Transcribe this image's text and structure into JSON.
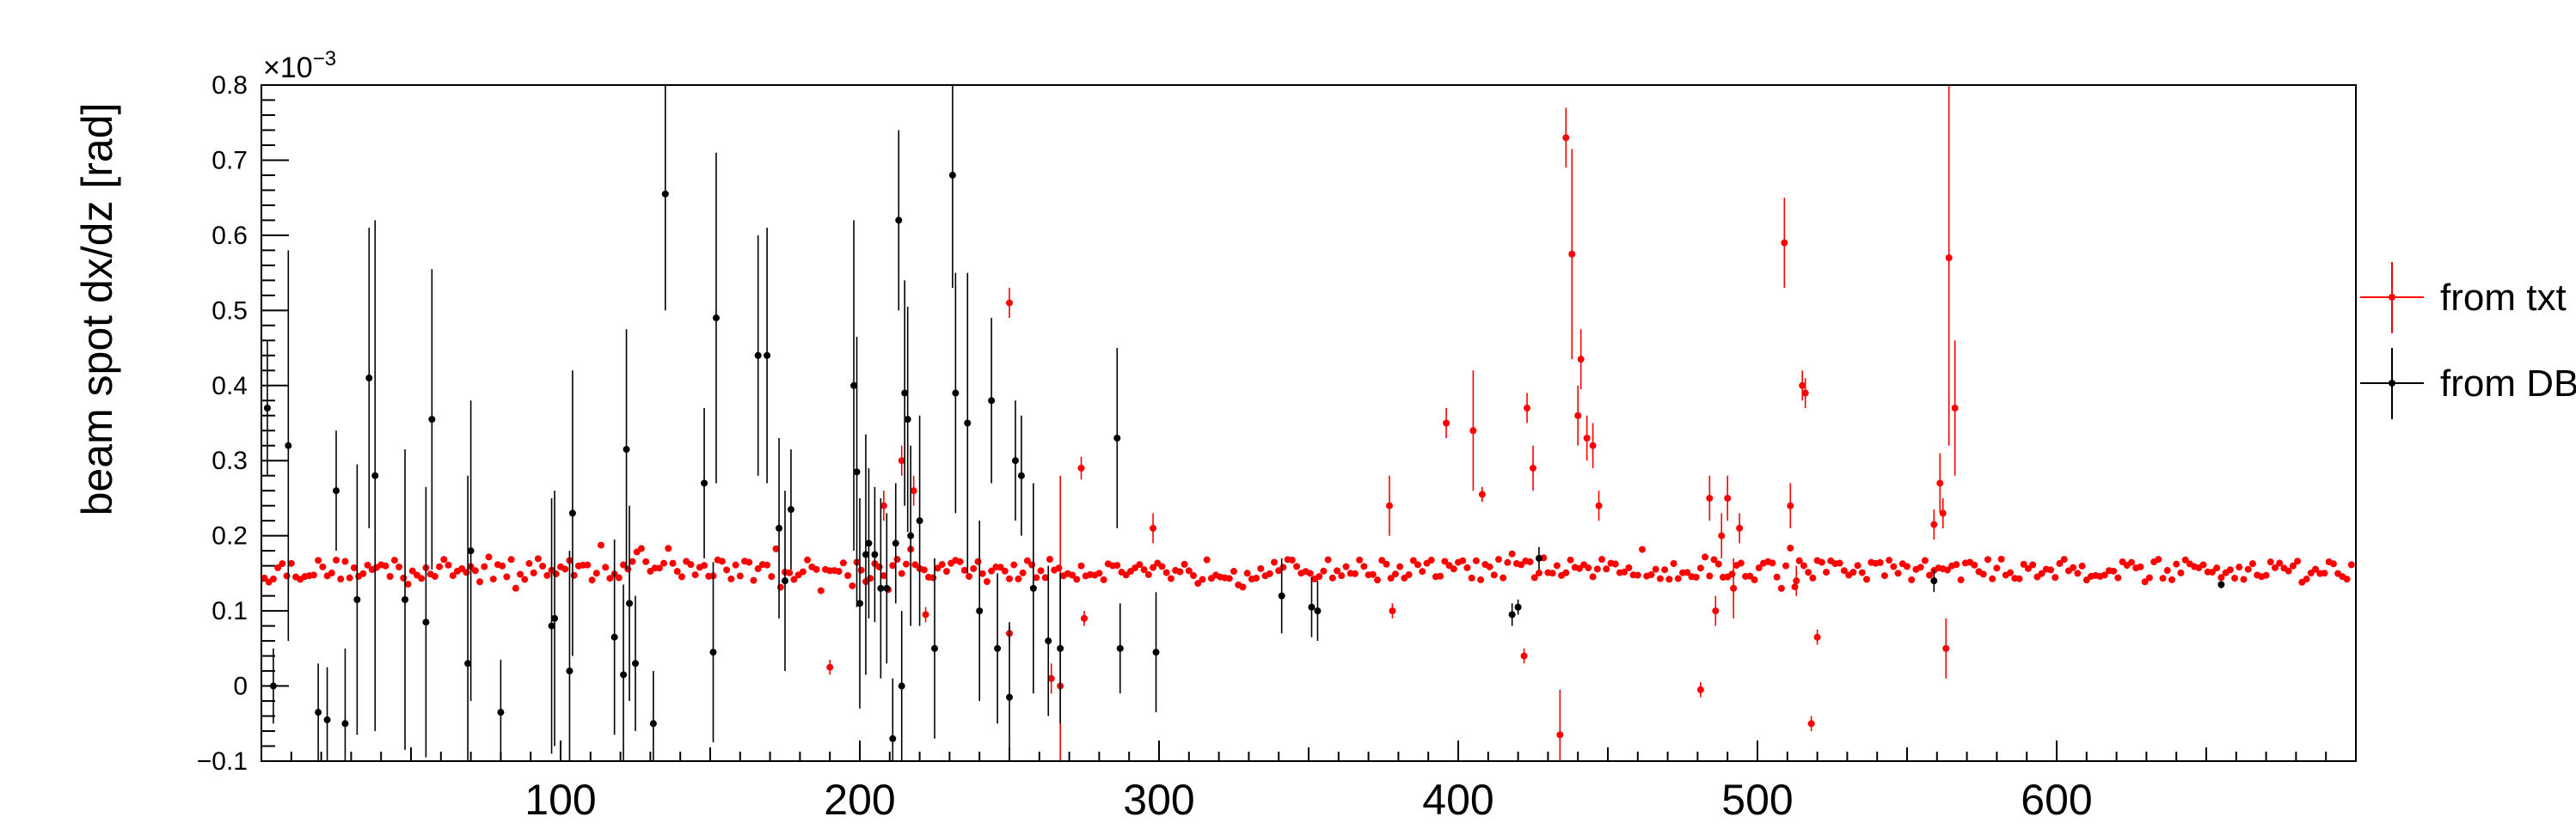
{
  "chart_data": {
    "type": "scatter",
    "ylabel": "beam spot dx/dz [rad]",
    "xlabel": "",
    "y_multiplier": "×10",
    "y_multiplier_exponent": "−3",
    "xlim": [
      0,
      700
    ],
    "ylim": [
      -0.1,
      0.8
    ],
    "x_ticks": [
      100,
      200,
      300,
      400,
      500,
      600
    ],
    "y_ticks": [
      -0.1,
      0,
      0.1,
      0.2,
      0.3,
      0.4,
      0.5,
      0.6,
      0.7,
      0.8
    ],
    "y_tick_labels": [
      "−0.1",
      "0",
      "0.1",
      "0.2",
      "0.3",
      "0.4",
      "0.5",
      "0.6",
      "0.7",
      "0.8"
    ],
    "legend_position": "right",
    "series": [
      {
        "name": "from txt",
        "color": "#ff0000",
        "baseline": 0.155,
        "x_range": [
          1,
          699
        ],
        "x_step": 1.5,
        "outliers": [
          {
            "x": 190,
            "y": 0.025,
            "err": 0.01
          },
          {
            "x": 208,
            "y": 0.24,
            "err": 0.02
          },
          {
            "x": 214,
            "y": 0.3,
            "err": 0.02
          },
          {
            "x": 218,
            "y": 0.26,
            "err": 0.02
          },
          {
            "x": 222,
            "y": 0.095,
            "err": 0.01
          },
          {
            "x": 250,
            "y": 0.51,
            "err": 0.02
          },
          {
            "x": 250,
            "y": 0.07,
            "err": 0.01
          },
          {
            "x": 264,
            "y": 0.01,
            "err": 0.02
          },
          {
            "x": 267,
            "y": 0.0,
            "err": 0.28
          },
          {
            "x": 274,
            "y": 0.29,
            "err": 0.015
          },
          {
            "x": 275,
            "y": 0.09,
            "err": 0.01
          },
          {
            "x": 298,
            "y": 0.21,
            "err": 0.02
          },
          {
            "x": 377,
            "y": 0.24,
            "err": 0.04
          },
          {
            "x": 378,
            "y": 0.1,
            "err": 0.01
          },
          {
            "x": 396,
            "y": 0.35,
            "err": 0.02
          },
          {
            "x": 405,
            "y": 0.34,
            "err": 0.08
          },
          {
            "x": 408,
            "y": 0.255,
            "err": 0.01
          },
          {
            "x": 422,
            "y": 0.04,
            "err": 0.01
          },
          {
            "x": 423,
            "y": 0.37,
            "err": 0.02
          },
          {
            "x": 425,
            "y": 0.29,
            "err": 0.03
          },
          {
            "x": 434,
            "y": -0.065,
            "err": 0.06
          },
          {
            "x": 436,
            "y": 0.73,
            "err": 0.04
          },
          {
            "x": 438,
            "y": 0.575,
            "err": 0.14
          },
          {
            "x": 440,
            "y": 0.36,
            "err": 0.04
          },
          {
            "x": 441,
            "y": 0.435,
            "err": 0.04
          },
          {
            "x": 443,
            "y": 0.33,
            "err": 0.03
          },
          {
            "x": 445,
            "y": 0.32,
            "err": 0.03
          },
          {
            "x": 447,
            "y": 0.24,
            "err": 0.02
          },
          {
            "x": 481,
            "y": -0.005,
            "err": 0.01
          },
          {
            "x": 484,
            "y": 0.25,
            "err": 0.03
          },
          {
            "x": 486,
            "y": 0.1,
            "err": 0.02
          },
          {
            "x": 488,
            "y": 0.2,
            "err": 0.03
          },
          {
            "x": 490,
            "y": 0.25,
            "err": 0.03
          },
          {
            "x": 492,
            "y": 0.13,
            "err": 0.04
          },
          {
            "x": 494,
            "y": 0.21,
            "err": 0.02
          },
          {
            "x": 509,
            "y": 0.59,
            "err": 0.06
          },
          {
            "x": 511,
            "y": 0.24,
            "err": 0.03
          },
          {
            "x": 513,
            "y": 0.14,
            "err": 0.02
          },
          {
            "x": 515,
            "y": 0.4,
            "err": 0.02
          },
          {
            "x": 516,
            "y": 0.39,
            "err": 0.02
          },
          {
            "x": 518,
            "y": -0.05,
            "err": 0.01
          },
          {
            "x": 520,
            "y": 0.065,
            "err": 0.01
          },
          {
            "x": 559,
            "y": 0.215,
            "err": 0.02
          },
          {
            "x": 561,
            "y": 0.27,
            "err": 0.04
          },
          {
            "x": 562,
            "y": 0.23,
            "err": 0.02
          },
          {
            "x": 563,
            "y": 0.05,
            "err": 0.04
          },
          {
            "x": 564,
            "y": 0.57,
            "err": 0.25
          },
          {
            "x": 566,
            "y": 0.37,
            "err": 0.09
          }
        ]
      },
      {
        "name": "from DB",
        "color": "#000000",
        "points": [
          {
            "x": 2,
            "y": 0.37,
            "err": 0.09
          },
          {
            "x": 4,
            "y": 0.0,
            "err": 0.05
          },
          {
            "x": 9,
            "y": 0.32,
            "err": 0.26
          },
          {
            "x": 19,
            "y": -0.035,
            "err": 0.065
          },
          {
            "x": 22,
            "y": -0.045,
            "err": 0.07
          },
          {
            "x": 25,
            "y": 0.26,
            "err": 0.08
          },
          {
            "x": 28,
            "y": -0.05,
            "err": 0.1
          },
          {
            "x": 32,
            "y": 0.115,
            "err": 0.18
          },
          {
            "x": 36,
            "y": 0.41,
            "err": 0.2
          },
          {
            "x": 38,
            "y": 0.28,
            "err": 0.34
          },
          {
            "x": 48,
            "y": 0.115,
            "err": 0.2
          },
          {
            "x": 55,
            "y": 0.085,
            "err": 0.18
          },
          {
            "x": 57,
            "y": 0.355,
            "err": 0.2
          },
          {
            "x": 69,
            "y": 0.03,
            "err": 0.25
          },
          {
            "x": 70,
            "y": 0.18,
            "err": 0.2
          },
          {
            "x": 80,
            "y": -0.035,
            "err": 0.07
          },
          {
            "x": 97,
            "y": 0.08,
            "err": 0.17
          },
          {
            "x": 98,
            "y": 0.09,
            "err": 0.17
          },
          {
            "x": 103,
            "y": 0.02,
            "err": 0.16
          },
          {
            "x": 104,
            "y": 0.23,
            "err": 0.19
          },
          {
            "x": 118,
            "y": 0.065,
            "err": 0.13
          },
          {
            "x": 121,
            "y": 0.015,
            "err": 0.12
          },
          {
            "x": 122,
            "y": 0.315,
            "err": 0.16
          },
          {
            "x": 123,
            "y": 0.11,
            "err": 0.13
          },
          {
            "x": 125,
            "y": 0.03,
            "err": 0.09
          },
          {
            "x": 131,
            "y": -0.05,
            "err": 0.07
          },
          {
            "x": 135,
            "y": 0.655,
            "err": 0.155
          },
          {
            "x": 148,
            "y": 0.27,
            "err": 0.1
          },
          {
            "x": 151,
            "y": 0.045,
            "err": 0.12
          },
          {
            "x": 152,
            "y": 0.49,
            "err": 0.22
          },
          {
            "x": 166,
            "y": 0.44,
            "err": 0.16
          },
          {
            "x": 169,
            "y": 0.44,
            "err": 0.17
          },
          {
            "x": 173,
            "y": 0.21,
            "err": 0.12
          },
          {
            "x": 175,
            "y": 0.14,
            "err": 0.12
          },
          {
            "x": 177,
            "y": 0.235,
            "err": 0.08
          },
          {
            "x": 198,
            "y": 0.4,
            "err": 0.22
          },
          {
            "x": 199,
            "y": 0.285,
            "err": 0.18
          },
          {
            "x": 200,
            "y": 0.11,
            "err": 0.14
          },
          {
            "x": 202,
            "y": 0.175,
            "err": 0.16
          },
          {
            "x": 203,
            "y": 0.19,
            "err": 0.1
          },
          {
            "x": 205,
            "y": 0.175,
            "err": 0.09
          },
          {
            "x": 207,
            "y": 0.13,
            "err": 0.12
          },
          {
            "x": 209,
            "y": 0.13,
            "err": 0.1
          },
          {
            "x": 211,
            "y": -0.07,
            "err": 0.08
          },
          {
            "x": 212,
            "y": 0.19,
            "err": 0.08
          },
          {
            "x": 213,
            "y": 0.62,
            "err": 0.12
          },
          {
            "x": 214,
            "y": 0.0,
            "err": 0.1
          },
          {
            "x": 215,
            "y": 0.39,
            "err": 0.15
          },
          {
            "x": 216,
            "y": 0.355,
            "err": 0.15
          },
          {
            "x": 217,
            "y": 0.2,
            "err": 0.12
          },
          {
            "x": 220,
            "y": 0.22,
            "err": 0.14
          },
          {
            "x": 225,
            "y": 0.05,
            "err": 0.12
          },
          {
            "x": 231,
            "y": 0.68,
            "err": 0.15
          },
          {
            "x": 232,
            "y": 0.39,
            "err": 0.16
          },
          {
            "x": 236,
            "y": 0.35,
            "err": 0.2
          },
          {
            "x": 240,
            "y": 0.1,
            "err": 0.12
          },
          {
            "x": 244,
            "y": 0.38,
            "err": 0.11
          },
          {
            "x": 246,
            "y": 0.05,
            "err": 0.1
          },
          {
            "x": 250,
            "y": -0.015,
            "err": 0.1
          },
          {
            "x": 252,
            "y": 0.3,
            "err": 0.08
          },
          {
            "x": 254,
            "y": 0.28,
            "err": 0.08
          },
          {
            "x": 258,
            "y": 0.13,
            "err": 0.14
          },
          {
            "x": 263,
            "y": 0.06,
            "err": 0.1
          },
          {
            "x": 267,
            "y": 0.05,
            "err": 0.1
          },
          {
            "x": 286,
            "y": 0.33,
            "err": 0.12
          },
          {
            "x": 287,
            "y": 0.05,
            "err": 0.06
          },
          {
            "x": 299,
            "y": 0.045,
            "err": 0.08
          },
          {
            "x": 341,
            "y": 0.12,
            "err": 0.05
          },
          {
            "x": 351,
            "y": 0.105,
            "err": 0.04
          },
          {
            "x": 353,
            "y": 0.1,
            "err": 0.04
          },
          {
            "x": 418,
            "y": 0.095,
            "err": 0.015
          },
          {
            "x": 420,
            "y": 0.105,
            "err": 0.01
          },
          {
            "x": 427,
            "y": 0.17,
            "err": 0.015
          },
          {
            "x": 559,
            "y": 0.14,
            "err": 0.015
          },
          {
            "x": 655,
            "y": 0.135,
            "err": 0.005
          }
        ]
      }
    ]
  }
}
